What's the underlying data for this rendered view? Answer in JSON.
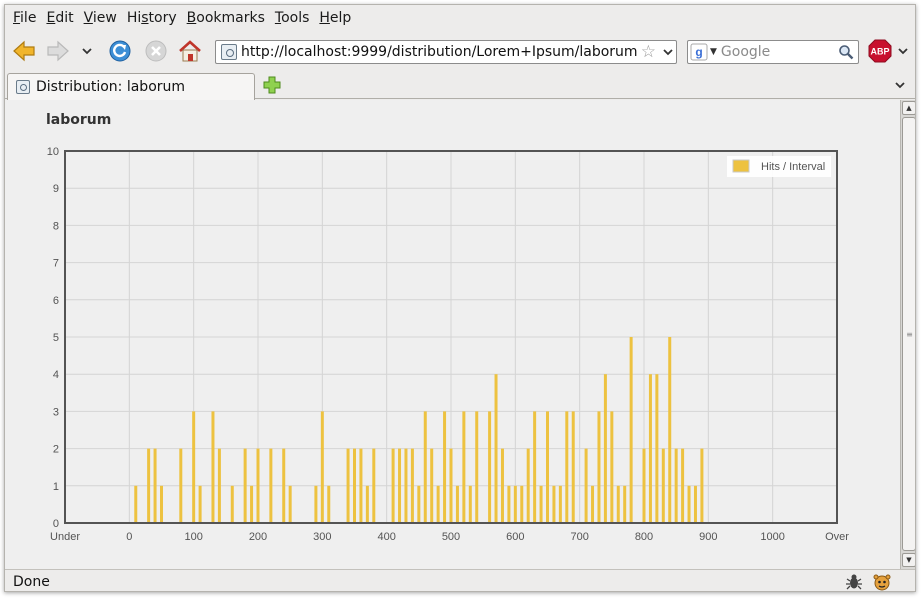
{
  "menu": {
    "items": [
      {
        "label": "File",
        "accel": "F",
        "rest": "ile"
      },
      {
        "label": "Edit",
        "accel": "E",
        "rest": "dit"
      },
      {
        "label": "View",
        "accel": "V",
        "rest": "iew"
      },
      {
        "label": "History",
        "pre": "Hi",
        "accel": "s",
        "rest": "tory"
      },
      {
        "label": "Bookmarks",
        "accel": "B",
        "rest": "ookmarks"
      },
      {
        "label": "Tools",
        "accel": "T",
        "rest": "ools"
      },
      {
        "label": "Help",
        "accel": "H",
        "rest": "elp"
      }
    ]
  },
  "toolbar": {
    "icons": [
      "back-icon",
      "forward-icon",
      "history-dropdown-icon",
      "reload-icon",
      "stop-icon",
      "home-icon"
    ],
    "url": "http://localhost:9999/distribution/Lorem+Ipsum/laborum",
    "search_placeholder": "Google",
    "adblock_label": "ABP"
  },
  "tabs": [
    {
      "label": "Distribution: laborum"
    }
  ],
  "page": {
    "title": "laborum"
  },
  "status": {
    "text": "Done"
  },
  "colors": {
    "bar": "#EDC240",
    "grid": "#d4d4d4",
    "axis_text": "#545454",
    "plot_border": "#545454"
  },
  "chart_data": {
    "type": "bar",
    "title": "",
    "xlabel": "",
    "ylabel": "",
    "ylim": [
      0,
      10
    ],
    "xlim": [
      "Under",
      "Over"
    ],
    "x_ticks": [
      "Under",
      "0",
      "100",
      "200",
      "300",
      "400",
      "500",
      "600",
      "700",
      "800",
      "900",
      "1000",
      "Over"
    ],
    "y_ticks": [
      0,
      1,
      2,
      3,
      4,
      5,
      6,
      7,
      8,
      9,
      10
    ],
    "grid": true,
    "legend_position": "top-right",
    "series": [
      {
        "name": "Hits / Interval",
        "x": [
          10,
          30,
          40,
          50,
          80,
          100,
          110,
          130,
          140,
          160,
          180,
          190,
          200,
          220,
          240,
          250,
          290,
          300,
          310,
          340,
          350,
          360,
          370,
          380,
          410,
          420,
          430,
          440,
          450,
          460,
          470,
          480,
          490,
          500,
          510,
          520,
          530,
          540,
          560,
          570,
          580,
          590,
          600,
          610,
          620,
          630,
          640,
          650,
          660,
          670,
          680,
          690,
          710,
          720,
          730,
          740,
          750,
          760,
          770,
          780,
          800,
          810,
          820,
          830,
          840,
          850,
          860,
          870,
          880,
          890
        ],
        "values": [
          1,
          2,
          2,
          1,
          2,
          3,
          1,
          3,
          2,
          1,
          2,
          1,
          2,
          2,
          2,
          1,
          1,
          3,
          1,
          2,
          2,
          2,
          1,
          2,
          2,
          2,
          2,
          2,
          1,
          3,
          2,
          1,
          3,
          2,
          1,
          3,
          1,
          3,
          3,
          4,
          2,
          1,
          1,
          1,
          2,
          3,
          1,
          3,
          1,
          1,
          3,
          3,
          2,
          1,
          3,
          4,
          3,
          1,
          1,
          5,
          2,
          4,
          4,
          2,
          5,
          2,
          2,
          1,
          1,
          2
        ]
      }
    ]
  }
}
